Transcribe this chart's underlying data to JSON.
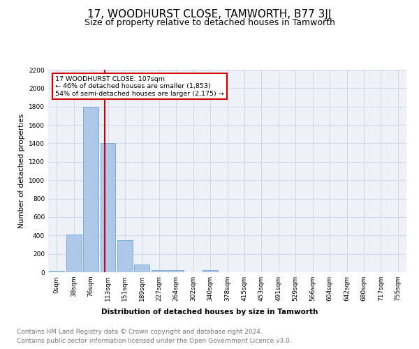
{
  "title": "17, WOODHURST CLOSE, TAMWORTH, B77 3JJ",
  "subtitle": "Size of property relative to detached houses in Tamworth",
  "xlabel": "Distribution of detached houses by size in Tamworth",
  "ylabel": "Number of detached properties",
  "bar_labels": [
    "0sqm",
    "38sqm",
    "76sqm",
    "113sqm",
    "151sqm",
    "189sqm",
    "227sqm",
    "264sqm",
    "302sqm",
    "340sqm",
    "378sqm",
    "415sqm",
    "453sqm",
    "491sqm",
    "529sqm",
    "566sqm",
    "604sqm",
    "642sqm",
    "680sqm",
    "717sqm",
    "755sqm"
  ],
  "bar_values": [
    15,
    410,
    1800,
    1400,
    350,
    80,
    25,
    25,
    0,
    25,
    0,
    0,
    0,
    0,
    0,
    0,
    0,
    0,
    0,
    0,
    0
  ],
  "bar_color": "#aec6e8",
  "bar_edge_color": "#5a9fd4",
  "grid_color": "#d0d8e8",
  "background_color": "#eef2f8",
  "red_line_x": 2.82,
  "annotation_text": "17 WOODHURST CLOSE: 107sqm\n← 46% of detached houses are smaller (1,853)\n54% of semi-detached houses are larger (2,175) →",
  "annotation_box_color": "#ffffff",
  "annotation_box_edge_color": "#cc0000",
  "ylim": [
    0,
    2200
  ],
  "yticks": [
    0,
    200,
    400,
    600,
    800,
    1000,
    1200,
    1400,
    1600,
    1800,
    2000,
    2200
  ],
  "footer_line1": "Contains HM Land Registry data © Crown copyright and database right 2024.",
  "footer_line2": "Contains public sector information licensed under the Open Government Licence v3.0.",
  "title_fontsize": 11,
  "subtitle_fontsize": 9,
  "axis_label_fontsize": 7.5,
  "tick_fontsize": 6.5,
  "footer_fontsize": 6.5
}
